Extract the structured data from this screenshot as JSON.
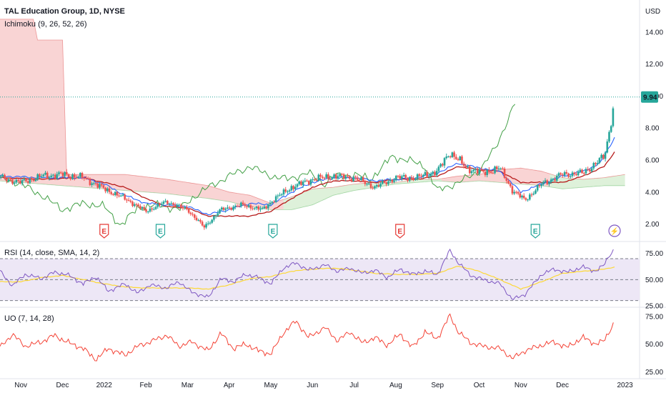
{
  "header": {
    "title": "TAL Education Group, 1D, NYSE",
    "indicator": "Ichimoku (9, 26, 52, 26)",
    "currency": "USD"
  },
  "price_badge": {
    "value": "9.94",
    "color": "#26a69a"
  },
  "rsi_panel": {
    "label": "RSI (14, close, SMA, 14, 2)",
    "ticks": [
      "75.00",
      "50.00",
      "25.00"
    ]
  },
  "uo_panel": {
    "label": "UO (7, 14, 28)",
    "ticks": [
      "75.00",
      "50.00",
      "25.00"
    ]
  },
  "colors": {
    "up": "#26a69a",
    "down": "#ef5350",
    "tenkan": "#2962ff",
    "kijun": "#b71c1c",
    "lagging": "#43a047",
    "cloud_bear": "#f8cccc",
    "cloud_bull": "#d8efd3",
    "rsi": "#7e57c2",
    "rsi_ma": "#fdd835",
    "rsi_band": "#ede7f6",
    "uo": "#f44336"
  },
  "earnings_markers": [
    {
      "month_offset": 2.5,
      "label": "E",
      "kind": "bad"
    },
    {
      "month_offset": 3.85,
      "label": "E",
      "kind": "good"
    },
    {
      "month_offset": 6.55,
      "label": "E",
      "kind": "good"
    },
    {
      "month_offset": 9.6,
      "label": "E",
      "kind": "bad"
    },
    {
      "month_offset": 12.85,
      "label": "E",
      "kind": "good"
    },
    {
      "month_offset": 14.75,
      "label": "⚡",
      "kind": "dividend"
    }
  ],
  "chart_data": {
    "type": "line",
    "x_axis_labels": [
      "Nov",
      "Dec",
      "2022",
      "Feb",
      "Mar",
      "Apr",
      "May",
      "Jun",
      "Jul",
      "Aug",
      "Sep",
      "Oct",
      "Nov",
      "Dec",
      "2023"
    ],
    "x_months": [
      0.5,
      1.5,
      2.5,
      3.5,
      4.5,
      5.5,
      6.5,
      7.5,
      8.5,
      9.5,
      10.5,
      11.5,
      12.5,
      13.5,
      15.0
    ],
    "price_panel": {
      "yaxis_unit": "USD",
      "y_ticks": [
        2.0,
        4.0,
        6.0,
        8.0,
        10.0,
        12.0,
        14.0
      ],
      "ylim": [
        1.0,
        16.0
      ],
      "last_price": 9.94,
      "close_anchors": [
        [
          0.0,
          4.9
        ],
        [
          0.5,
          4.6
        ],
        [
          1.0,
          5.0
        ],
        [
          1.5,
          5.1
        ],
        [
          2.0,
          4.9
        ],
        [
          2.5,
          4.2
        ],
        [
          3.0,
          3.6
        ],
        [
          3.5,
          2.8
        ],
        [
          4.0,
          3.4
        ],
        [
          4.5,
          2.9
        ],
        [
          4.9,
          1.8
        ],
        [
          5.3,
          2.9
        ],
        [
          5.8,
          3.2
        ],
        [
          6.3,
          2.9
        ],
        [
          6.6,
          3.6
        ],
        [
          7.0,
          4.3
        ],
        [
          7.5,
          4.8
        ],
        [
          8.0,
          5.0
        ],
        [
          8.5,
          4.9
        ],
        [
          9.0,
          4.3
        ],
        [
          9.5,
          4.9
        ],
        [
          10.0,
          4.9
        ],
        [
          10.5,
          5.3
        ],
        [
          10.8,
          6.5
        ],
        [
          11.2,
          5.5
        ],
        [
          11.6,
          5.2
        ],
        [
          12.0,
          5.5
        ],
        [
          12.3,
          4.1
        ],
        [
          12.6,
          3.5
        ],
        [
          13.0,
          4.5
        ],
        [
          13.5,
          5.1
        ],
        [
          14.0,
          5.2
        ],
        [
          14.3,
          5.8
        ],
        [
          14.5,
          6.2
        ],
        [
          14.6,
          7.4
        ],
        [
          14.65,
          8.3
        ],
        [
          14.7,
          9.0
        ],
        [
          14.75,
          9.94
        ]
      ],
      "tenkan_anchors": [
        [
          0.0,
          5.0
        ],
        [
          1.0,
          4.9
        ],
        [
          2.0,
          4.9
        ],
        [
          2.5,
          4.5
        ],
        [
          3.0,
          3.8
        ],
        [
          3.5,
          3.3
        ],
        [
          4.0,
          3.2
        ],
        [
          4.5,
          3.1
        ],
        [
          5.0,
          2.6
        ],
        [
          5.5,
          2.9
        ],
        [
          6.0,
          3.3
        ],
        [
          6.5,
          3.2
        ],
        [
          7.0,
          4.0
        ],
        [
          7.5,
          4.6
        ],
        [
          8.0,
          4.9
        ],
        [
          8.5,
          4.9
        ],
        [
          9.0,
          4.7
        ],
        [
          9.5,
          4.8
        ],
        [
          10.0,
          4.9
        ],
        [
          10.5,
          5.2
        ],
        [
          11.0,
          5.8
        ],
        [
          11.5,
          5.5
        ],
        [
          12.0,
          5.3
        ],
        [
          12.5,
          4.0
        ],
        [
          13.0,
          4.5
        ],
        [
          13.5,
          5.0
        ],
        [
          14.0,
          5.3
        ],
        [
          14.4,
          5.8
        ],
        [
          14.75,
          7.4
        ]
      ],
      "kijun_anchors": [
        [
          0.0,
          4.9
        ],
        [
          1.0,
          4.8
        ],
        [
          2.0,
          4.9
        ],
        [
          3.0,
          4.3
        ],
        [
          3.5,
          3.6
        ],
        [
          4.0,
          3.1
        ],
        [
          4.5,
          3.0
        ],
        [
          5.0,
          2.5
        ],
        [
          6.0,
          2.5
        ],
        [
          6.5,
          2.8
        ],
        [
          7.0,
          3.6
        ],
        [
          7.5,
          4.3
        ],
        [
          8.0,
          4.7
        ],
        [
          8.5,
          4.7
        ],
        [
          9.0,
          4.6
        ],
        [
          9.5,
          4.8
        ],
        [
          10.0,
          4.8
        ],
        [
          10.5,
          5.0
        ],
        [
          11.0,
          5.6
        ],
        [
          11.5,
          5.4
        ],
        [
          12.0,
          5.3
        ],
        [
          12.5,
          4.6
        ],
        [
          13.0,
          4.6
        ],
        [
          13.5,
          4.6
        ],
        [
          14.0,
          5.0
        ],
        [
          14.5,
          5.6
        ],
        [
          14.75,
          6.5
        ]
      ],
      "lagging_anchors": [
        [
          0.0,
          4.9
        ],
        [
          0.5,
          4.5
        ],
        [
          1.0,
          3.8
        ],
        [
          1.5,
          2.9
        ],
        [
          2.0,
          3.3
        ],
        [
          2.5,
          3.1
        ],
        [
          2.9,
          1.9
        ],
        [
          3.3,
          3.0
        ],
        [
          3.8,
          3.2
        ],
        [
          4.3,
          2.9
        ],
        [
          4.6,
          3.6
        ],
        [
          5.0,
          4.3
        ],
        [
          5.5,
          5.0
        ],
        [
          6.0,
          5.6
        ],
        [
          6.5,
          5.0
        ],
        [
          6.9,
          4.8
        ],
        [
          7.4,
          5.2
        ],
        [
          7.8,
          4.5
        ],
        [
          8.0,
          5.0
        ],
        [
          8.5,
          5.1
        ],
        [
          8.9,
          4.8
        ],
        [
          9.4,
          6.2
        ],
        [
          9.8,
          6.0
        ],
        [
          10.2,
          5.6
        ],
        [
          10.5,
          4.1
        ],
        [
          11.0,
          4.6
        ],
        [
          11.5,
          5.3
        ],
        [
          11.9,
          6.8
        ],
        [
          12.4,
          9.8
        ]
      ],
      "cloud_top_anchors": [
        [
          0.0,
          14.8
        ],
        [
          0.8,
          14.8
        ],
        [
          0.9,
          13.5
        ],
        [
          1.5,
          13.5
        ],
        [
          1.6,
          5.1
        ],
        [
          3.0,
          5.1
        ],
        [
          4.0,
          4.8
        ],
        [
          5.0,
          4.4
        ],
        [
          5.5,
          4.0
        ],
        [
          6.0,
          3.8
        ],
        [
          6.5,
          3.3
        ],
        [
          7.0,
          3.7
        ],
        [
          7.5,
          4.2
        ],
        [
          8.0,
          4.3
        ],
        [
          8.5,
          4.5
        ],
        [
          9.0,
          4.6
        ],
        [
          9.5,
          4.6
        ],
        [
          10.0,
          4.8
        ],
        [
          10.5,
          4.8
        ],
        [
          11.0,
          5.0
        ],
        [
          11.5,
          5.1
        ],
        [
          12.0,
          5.4
        ],
        [
          12.5,
          5.5
        ],
        [
          13.0,
          5.3
        ],
        [
          13.5,
          4.9
        ],
        [
          14.0,
          4.8
        ],
        [
          14.5,
          4.9
        ],
        [
          15.0,
          5.1
        ]
      ],
      "cloud_bottom_anchors": [
        [
          0.0,
          4.7
        ],
        [
          1.0,
          4.5
        ],
        [
          2.0,
          4.3
        ],
        [
          3.0,
          4.1
        ],
        [
          4.0,
          3.9
        ],
        [
          5.0,
          3.6
        ],
        [
          5.5,
          3.4
        ],
        [
          6.0,
          3.1
        ],
        [
          6.5,
          2.9
        ],
        [
          7.0,
          2.9
        ],
        [
          7.5,
          3.2
        ],
        [
          8.0,
          3.8
        ],
        [
          8.5,
          4.1
        ],
        [
          9.0,
          4.3
        ],
        [
          9.5,
          4.5
        ],
        [
          10.0,
          4.6
        ],
        [
          10.5,
          4.7
        ],
        [
          11.0,
          4.6
        ],
        [
          11.5,
          4.7
        ],
        [
          12.0,
          4.6
        ],
        [
          12.5,
          4.5
        ],
        [
          13.0,
          4.4
        ],
        [
          13.5,
          4.2
        ],
        [
          14.0,
          4.3
        ],
        [
          14.5,
          4.4
        ],
        [
          15.0,
          4.4
        ]
      ]
    },
    "rsi_panel": {
      "ylim": [
        25,
        85
      ],
      "bands": [
        30,
        50,
        70
      ],
      "rsi_anchors": [
        [
          0.0,
          58
        ],
        [
          0.3,
          44
        ],
        [
          0.6,
          55
        ],
        [
          1.0,
          51
        ],
        [
          1.3,
          57
        ],
        [
          1.6,
          55
        ],
        [
          2.0,
          46
        ],
        [
          2.3,
          53
        ],
        [
          2.6,
          39
        ],
        [
          3.0,
          46
        ],
        [
          3.3,
          37
        ],
        [
          3.6,
          45
        ],
        [
          4.0,
          42
        ],
        [
          4.3,
          48
        ],
        [
          4.6,
          38
        ],
        [
          5.0,
          33
        ],
        [
          5.3,
          51
        ],
        [
          5.6,
          48
        ],
        [
          5.9,
          55
        ],
        [
          6.2,
          52
        ],
        [
          6.5,
          46
        ],
        [
          6.8,
          61
        ],
        [
          7.1,
          66
        ],
        [
          7.4,
          59
        ],
        [
          7.8,
          64
        ],
        [
          8.1,
          58
        ],
        [
          8.4,
          61
        ],
        [
          8.7,
          56
        ],
        [
          9.0,
          59
        ],
        [
          9.3,
          52
        ],
        [
          9.6,
          60
        ],
        [
          9.9,
          55
        ],
        [
          10.2,
          58
        ],
        [
          10.5,
          55
        ],
        [
          10.8,
          78
        ],
        [
          11.0,
          66
        ],
        [
          11.3,
          54
        ],
        [
          11.6,
          50
        ],
        [
          12.0,
          46
        ],
        [
          12.3,
          31
        ],
        [
          12.6,
          36
        ],
        [
          13.0,
          55
        ],
        [
          13.3,
          60
        ],
        [
          13.6,
          57
        ],
        [
          14.0,
          62
        ],
        [
          14.3,
          58
        ],
        [
          14.5,
          64
        ],
        [
          14.6,
          72
        ],
        [
          14.75,
          79
        ]
      ],
      "rsi_ma_anchors": [
        [
          0.0,
          48
        ],
        [
          0.5,
          48
        ],
        [
          1.0,
          52
        ],
        [
          1.5,
          54
        ],
        [
          2.0,
          50
        ],
        [
          2.5,
          46
        ],
        [
          3.0,
          43
        ],
        [
          3.5,
          42
        ],
        [
          4.0,
          42
        ],
        [
          4.5,
          42
        ],
        [
          5.0,
          41
        ],
        [
          5.5,
          45
        ],
        [
          6.0,
          51
        ],
        [
          6.5,
          53
        ],
        [
          7.0,
          58
        ],
        [
          7.5,
          60
        ],
        [
          8.0,
          61
        ],
        [
          8.5,
          59
        ],
        [
          9.0,
          56
        ],
        [
          9.5,
          55
        ],
        [
          10.0,
          55
        ],
        [
          10.5,
          56
        ],
        [
          11.0,
          63
        ],
        [
          11.5,
          58
        ],
        [
          12.0,
          50
        ],
        [
          12.5,
          41
        ],
        [
          13.0,
          48
        ],
        [
          13.5,
          56
        ],
        [
          14.0,
          58
        ],
        [
          14.5,
          60
        ],
        [
          14.75,
          62
        ]
      ]
    },
    "uo_panel": {
      "ylim": [
        20,
        82
      ],
      "uo_anchors": [
        [
          0.0,
          47
        ],
        [
          0.3,
          59
        ],
        [
          0.6,
          48
        ],
        [
          1.0,
          52
        ],
        [
          1.3,
          58
        ],
        [
          1.6,
          52
        ],
        [
          2.0,
          46
        ],
        [
          2.3,
          36
        ],
        [
          2.6,
          46
        ],
        [
          3.0,
          40
        ],
        [
          3.3,
          48
        ],
        [
          3.6,
          52
        ],
        [
          4.0,
          58
        ],
        [
          4.3,
          48
        ],
        [
          4.6,
          52
        ],
        [
          5.0,
          44
        ],
        [
          5.3,
          60
        ],
        [
          5.6,
          46
        ],
        [
          5.9,
          50
        ],
        [
          6.2,
          44
        ],
        [
          6.5,
          41
        ],
        [
          6.8,
          60
        ],
        [
          7.1,
          71
        ],
        [
          7.4,
          56
        ],
        [
          7.8,
          65
        ],
        [
          8.1,
          53
        ],
        [
          8.4,
          61
        ],
        [
          8.7,
          51
        ],
        [
          9.0,
          56
        ],
        [
          9.3,
          49
        ],
        [
          9.6,
          59
        ],
        [
          9.9,
          47
        ],
        [
          10.2,
          61
        ],
        [
          10.5,
          55
        ],
        [
          10.8,
          76
        ],
        [
          11.0,
          61
        ],
        [
          11.3,
          51
        ],
        [
          11.6,
          48
        ],
        [
          12.0,
          46
        ],
        [
          12.3,
          37
        ],
        [
          12.6,
          44
        ],
        [
          13.0,
          49
        ],
        [
          13.3,
          52
        ],
        [
          13.6,
          47
        ],
        [
          14.0,
          56
        ],
        [
          14.3,
          50
        ],
        [
          14.5,
          53
        ],
        [
          14.6,
          60
        ],
        [
          14.75,
          70
        ]
      ]
    }
  }
}
